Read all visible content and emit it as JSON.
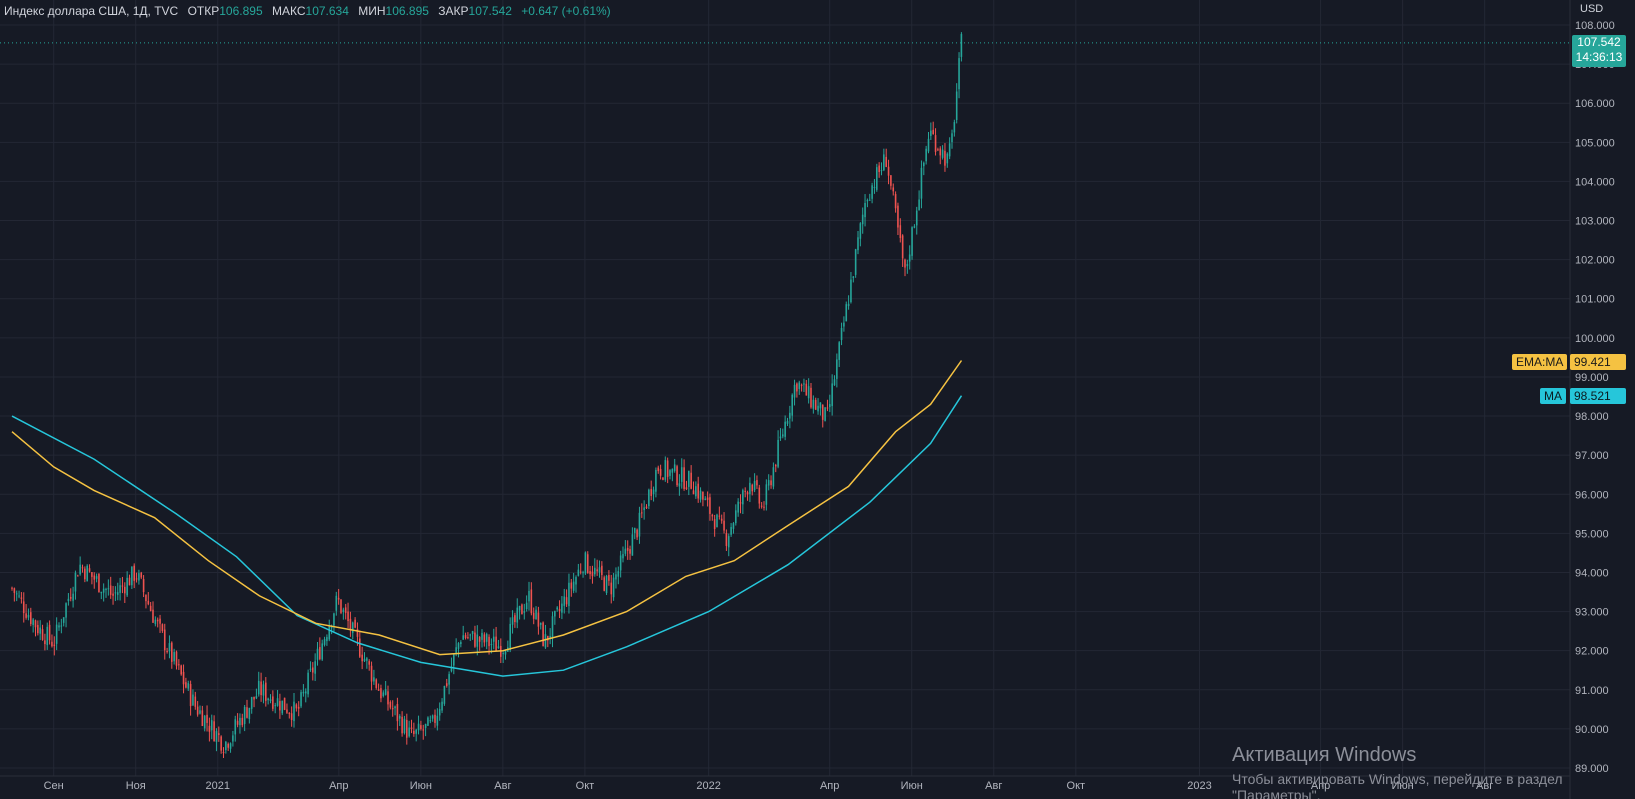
{
  "header": {
    "instrument": "Индекс доллара США, 1Д, TVC",
    "open_label": "ОТКР",
    "open": "106.895",
    "high_label": "МАКС",
    "high": "107.634",
    "low_label": "МИН",
    "low": "106.895",
    "close_label": "ЗАКР",
    "close": "107.542",
    "change": "+0.647 (+0.61%)",
    "currency": "USD"
  },
  "price_badge": {
    "price": "107.542",
    "countdown": "14:36:13"
  },
  "indicators": [
    {
      "label": "EMA:MA",
      "value": "99.421",
      "color": "#f5c242"
    },
    {
      "label": "MA",
      "value": "98.521",
      "color": "#26c6da"
    }
  ],
  "watermark": {
    "title": "Активация Windows",
    "text": "Чтобы активировать Windows, перейдите в раздел \"Параметры\"."
  },
  "colors": {
    "up": "#26a69a",
    "down": "#ef5350",
    "background": "#161a25",
    "grid": "#232734"
  },
  "chart_data": {
    "type": "line",
    "y_axis_labels": [
      "108.000",
      "107.000",
      "106.000",
      "105.000",
      "104.000",
      "103.000",
      "102.000",
      "101.000",
      "100.000",
      "99.000",
      "98.000",
      "97.000",
      "96.000",
      "95.000",
      "94.000",
      "93.000",
      "92.000",
      "91.000",
      "90.000",
      "89.000"
    ],
    "ylim": [
      89,
      108
    ],
    "x_axis_labels": [
      "Сен",
      "Ноя",
      "2021",
      "Апр",
      "Июн",
      "Авг",
      "Окт",
      "2022",
      "Апр",
      "Июн",
      "Авг",
      "Окт",
      "2023",
      "Апр",
      "Июн",
      "Авг"
    ],
    "price_path": [
      [
        "2020-08-01",
        93.6
      ],
      [
        "2020-08-20",
        92.6
      ],
      [
        "2020-09-01",
        92.2
      ],
      [
        "2020-09-20",
        94.2
      ],
      [
        "2020-10-15",
        93.4
      ],
      [
        "2020-11-01",
        94.0
      ],
      [
        "2020-11-20",
        92.4
      ],
      [
        "2020-12-15",
        90.6
      ],
      [
        "2021-01-06",
        89.6
      ],
      [
        "2021-02-01",
        91.0
      ],
      [
        "2021-03-01",
        90.4
      ],
      [
        "2021-03-31",
        93.3
      ],
      [
        "2021-05-01",
        91.0
      ],
      [
        "2021-05-25",
        89.8
      ],
      [
        "2021-06-10",
        90.1
      ],
      [
        "2021-07-01",
        92.4
      ],
      [
        "2021-08-01",
        92.1
      ],
      [
        "2021-08-20",
        93.4
      ],
      [
        "2021-09-01",
        92.2
      ],
      [
        "2021-09-30",
        94.3
      ],
      [
        "2021-10-20",
        93.6
      ],
      [
        "2021-11-10",
        95.2
      ],
      [
        "2021-11-24",
        96.7
      ],
      [
        "2021-12-20",
        96.3
      ],
      [
        "2022-01-14",
        94.9
      ],
      [
        "2022-02-01",
        96.4
      ],
      [
        "2022-02-10",
        95.6
      ],
      [
        "2022-03-07",
        98.9
      ],
      [
        "2022-03-30",
        97.9
      ],
      [
        "2022-04-28",
        103.6
      ],
      [
        "2022-05-13",
        104.6
      ],
      [
        "2022-05-27",
        101.6
      ],
      [
        "2022-06-14",
        105.3
      ],
      [
        "2022-06-28",
        104.5
      ],
      [
        "2022-07-01",
        105.1
      ],
      [
        "2022-07-08",
        107.54
      ]
    ],
    "ma_path": [
      [
        "2020-08-01",
        98.0
      ],
      [
        "2020-10-01",
        96.9
      ],
      [
        "2020-12-01",
        95.5
      ],
      [
        "2021-01-15",
        94.4
      ],
      [
        "2021-03-01",
        92.9
      ],
      [
        "2021-04-15",
        92.2
      ],
      [
        "2021-06-01",
        91.7
      ],
      [
        "2021-08-01",
        91.35
      ],
      [
        "2021-09-15",
        91.5
      ],
      [
        "2021-11-01",
        92.1
      ],
      [
        "2022-01-01",
        93.0
      ],
      [
        "2022-03-01",
        94.2
      ],
      [
        "2022-05-01",
        95.8
      ],
      [
        "2022-06-15",
        97.3
      ],
      [
        "2022-07-08",
        98.52
      ]
    ],
    "ema_path": [
      [
        "2020-08-01",
        97.6
      ],
      [
        "2020-09-01",
        96.7
      ],
      [
        "2020-10-01",
        96.1
      ],
      [
        "2020-11-15",
        95.4
      ],
      [
        "2020-12-25",
        94.3
      ],
      [
        "2021-02-01",
        93.4
      ],
      [
        "2021-03-15",
        92.7
      ],
      [
        "2021-05-01",
        92.4
      ],
      [
        "2021-06-15",
        91.9
      ],
      [
        "2021-08-01",
        92.0
      ],
      [
        "2021-09-15",
        92.4
      ],
      [
        "2021-11-01",
        93.0
      ],
      [
        "2021-12-15",
        93.9
      ],
      [
        "2022-01-20",
        94.3
      ],
      [
        "2022-03-01",
        95.2
      ],
      [
        "2022-04-15",
        96.2
      ],
      [
        "2022-05-20",
        97.6
      ],
      [
        "2022-06-15",
        98.3
      ],
      [
        "2022-07-08",
        99.42
      ]
    ],
    "last_price": 107.542
  }
}
